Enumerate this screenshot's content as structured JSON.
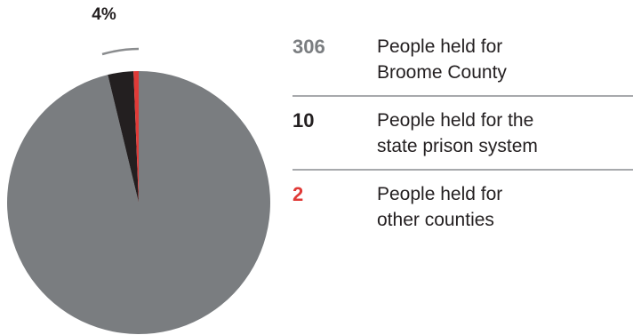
{
  "chart_data": {
    "type": "pie",
    "annotation": "4%",
    "slices": [
      {
        "label": "People held for Broome County",
        "value": 306,
        "color": "#7a7d80"
      },
      {
        "label": "People held for the state prison system",
        "value": 10,
        "color": "#231f20"
      },
      {
        "label": "People held for other counties",
        "value": 2,
        "color": "#e03a37"
      }
    ]
  },
  "legend": [
    {
      "value": "306",
      "line1": "People held for",
      "line2": "Broome County",
      "color": "#7a7d80"
    },
    {
      "value": "10",
      "line1": "People held for the",
      "line2": "state prison system",
      "color": "#231f20"
    },
    {
      "value": "2",
      "line1": "People held for",
      "line2": "other counties",
      "color": "#e03a37"
    }
  ]
}
